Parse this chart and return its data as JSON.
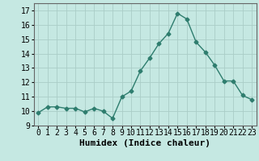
{
  "x": [
    0,
    1,
    2,
    3,
    4,
    5,
    6,
    7,
    8,
    9,
    10,
    11,
    12,
    13,
    14,
    15,
    16,
    17,
    18,
    19,
    20,
    21,
    22,
    23
  ],
  "y": [
    9.9,
    10.3,
    10.3,
    10.2,
    10.2,
    9.95,
    10.2,
    10.0,
    9.5,
    11.0,
    11.4,
    12.8,
    13.7,
    14.7,
    15.4,
    16.8,
    16.4,
    14.8,
    14.1,
    13.2,
    12.1,
    12.1,
    11.1,
    10.8
  ],
  "xlabel": "Humidex (Indice chaleur)",
  "xlim": [
    -0.5,
    23.5
  ],
  "ylim": [
    9.0,
    17.5
  ],
  "yticks": [
    9,
    10,
    11,
    12,
    13,
    14,
    15,
    16,
    17
  ],
  "xtick_labels": [
    "0",
    "1",
    "2",
    "3",
    "4",
    "5",
    "6",
    "7",
    "8",
    "9",
    "10",
    "11",
    "12",
    "13",
    "14",
    "15",
    "16",
    "17",
    "18",
    "19",
    "20",
    "21",
    "22",
    "23"
  ],
  "line_color": "#2e7d6e",
  "bg_color": "#c5e8e2",
  "grid_color": "#aacdc7",
  "marker": "D",
  "marker_size": 2.5,
  "linewidth": 1.0,
  "xlabel_fontsize": 8,
  "tick_fontsize": 7
}
